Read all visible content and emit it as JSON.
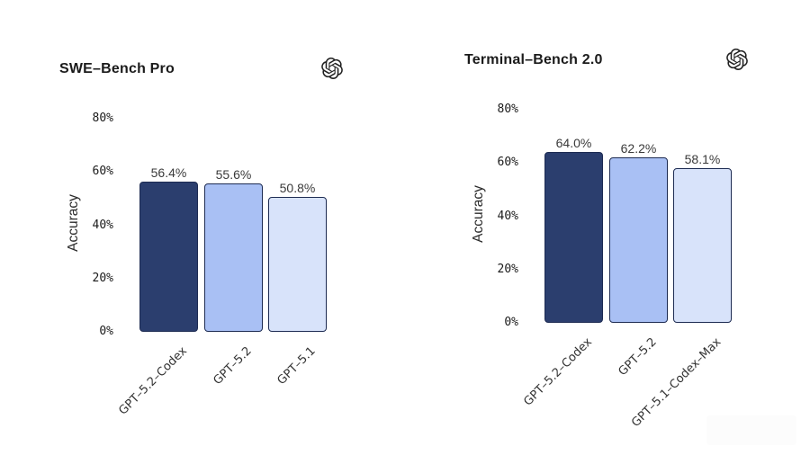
{
  "page": {
    "background": "#ffffff"
  },
  "chart_data": [
    {
      "type": "bar",
      "title": "SWE–Bench Pro",
      "ylabel": "Accuracy",
      "categories": [
        "GPT–5.2–Codex",
        "GPT–5.2",
        "GPT–5.1"
      ],
      "values": [
        56.4,
        55.6,
        50.8
      ],
      "value_labels": [
        "56.4%",
        "55.6%",
        "50.8%"
      ],
      "ylim": [
        0,
        80
      ],
      "yticks": [
        0,
        20,
        40,
        60,
        80
      ],
      "ytick_labels": [
        "0%",
        "20%",
        "40%",
        "60%",
        "80%"
      ],
      "grid": false,
      "legend": false,
      "corner_icon": "openai-logo",
      "bar_colors": [
        "#2b3e6e",
        "#a9c0f4",
        "#d8e3fa"
      ],
      "bar_border_color": "#1d2b52"
    },
    {
      "type": "bar",
      "title": "Terminal–Bench 2.0",
      "ylabel": "Accuracy",
      "categories": [
        "GPT–5.2–Codex",
        "GPT–5.2",
        "GPT–5.1–Codex–Max"
      ],
      "values": [
        64.0,
        62.2,
        58.1
      ],
      "value_labels": [
        "64.0%",
        "62.2%",
        "58.1%"
      ],
      "ylim": [
        0,
        80
      ],
      "yticks": [
        0,
        20,
        40,
        60,
        80
      ],
      "ytick_labels": [
        "0%",
        "20%",
        "40%",
        "60%",
        "80%"
      ],
      "grid": false,
      "legend": false,
      "corner_icon": "openai-logo",
      "bar_colors": [
        "#2b3e6e",
        "#a9c0f4",
        "#d8e3fa"
      ],
      "bar_border_color": "#1d2b52"
    }
  ]
}
